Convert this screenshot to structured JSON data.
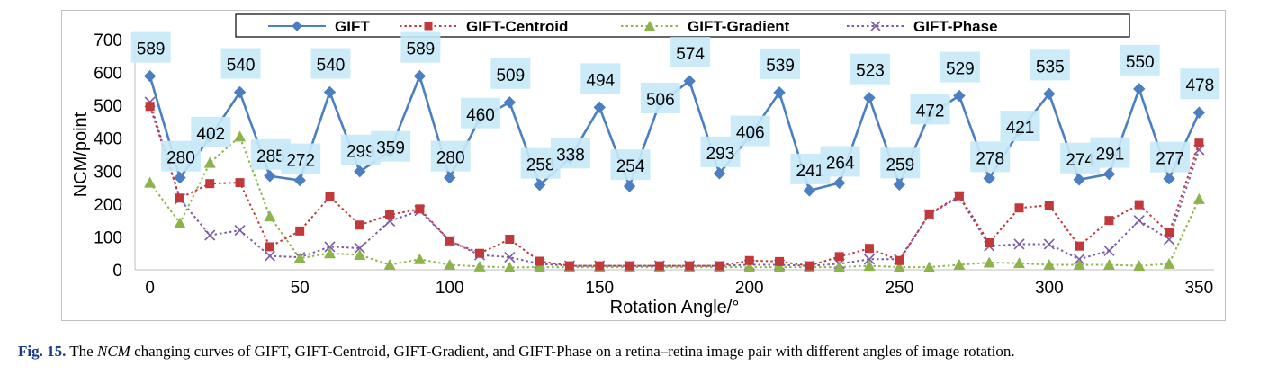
{
  "chart_data": {
    "type": "line",
    "xlabel": "Rotation Angle/°",
    "ylabel": "NCM/point",
    "xlim": [
      -5,
      355
    ],
    "ylim": [
      0,
      700
    ],
    "xticks": [
      0,
      50,
      100,
      150,
      200,
      250,
      300,
      350
    ],
    "yticks": [
      0,
      100,
      200,
      300,
      400,
      500,
      600,
      700
    ],
    "grid": false,
    "legend_position": "top",
    "x": [
      0,
      10,
      20,
      30,
      40,
      50,
      60,
      70,
      80,
      90,
      100,
      110,
      120,
      130,
      140,
      150,
      160,
      170,
      180,
      190,
      200,
      210,
      220,
      230,
      240,
      250,
      260,
      270,
      280,
      290,
      300,
      310,
      320,
      330,
      340,
      350
    ],
    "series": [
      {
        "name": "GIFT",
        "color": "#4a7fc1",
        "marker": "diamond",
        "line": "solid",
        "labeled": true,
        "values": [
          589,
          280,
          402,
          540,
          285,
          272,
          540,
          299,
          359,
          589,
          280,
          460,
          509,
          258,
          338,
          494,
          254,
          506,
          574,
          293,
          406,
          539,
          241,
          264,
          523,
          259,
          472,
          529,
          278,
          421,
          535,
          274,
          291,
          550,
          277,
          478
        ]
      },
      {
        "name": "GIFT-Centroid",
        "color": "#c0393b",
        "marker": "square",
        "line": "dotted",
        "labeled": false,
        "values": [
          497,
          218,
          262,
          265,
          70,
          118,
          222,
          136,
          167,
          185,
          88,
          50,
          93,
          26,
          12,
          12,
          12,
          12,
          12,
          12,
          28,
          25,
          12,
          40,
          65,
          28,
          170,
          225,
          82,
          188,
          196,
          72,
          150,
          198,
          112,
          385
        ]
      },
      {
        "name": "GIFT-Gradient",
        "color": "#8cb44a",
        "marker": "triangle",
        "line": "dotted",
        "labeled": false,
        "values": [
          265,
          142,
          325,
          405,
          162,
          35,
          50,
          45,
          15,
          32,
          15,
          10,
          7,
          8,
          8,
          8,
          8,
          8,
          8,
          8,
          8,
          8,
          8,
          8,
          12,
          8,
          8,
          15,
          22,
          20,
          15,
          15,
          15,
          12,
          18,
          215
        ]
      },
      {
        "name": "GIFT-Phase",
        "color": "#7b5aa6",
        "marker": "x",
        "line": "dotted",
        "labeled": false,
        "values": [
          510,
          215,
          105,
          120,
          42,
          38,
          70,
          66,
          148,
          180,
          88,
          45,
          38,
          18,
          12,
          12,
          12,
          12,
          12,
          12,
          15,
          15,
          12,
          18,
          32,
          32,
          168,
          222,
          72,
          78,
          78,
          32,
          58,
          150,
          92,
          365
        ]
      }
    ]
  },
  "caption": {
    "fig_label": "Fig. 15.",
    "text_before": " The ",
    "italic": "NCM",
    "text_after": " changing curves of GIFT, GIFT-Centroid, GIFT-Gradient, and GIFT-Phase on a retina–retina image pair with different angles of image rotation."
  },
  "colors": {
    "label_box": "#c7e9f8",
    "frame": "#bfbfbf"
  }
}
